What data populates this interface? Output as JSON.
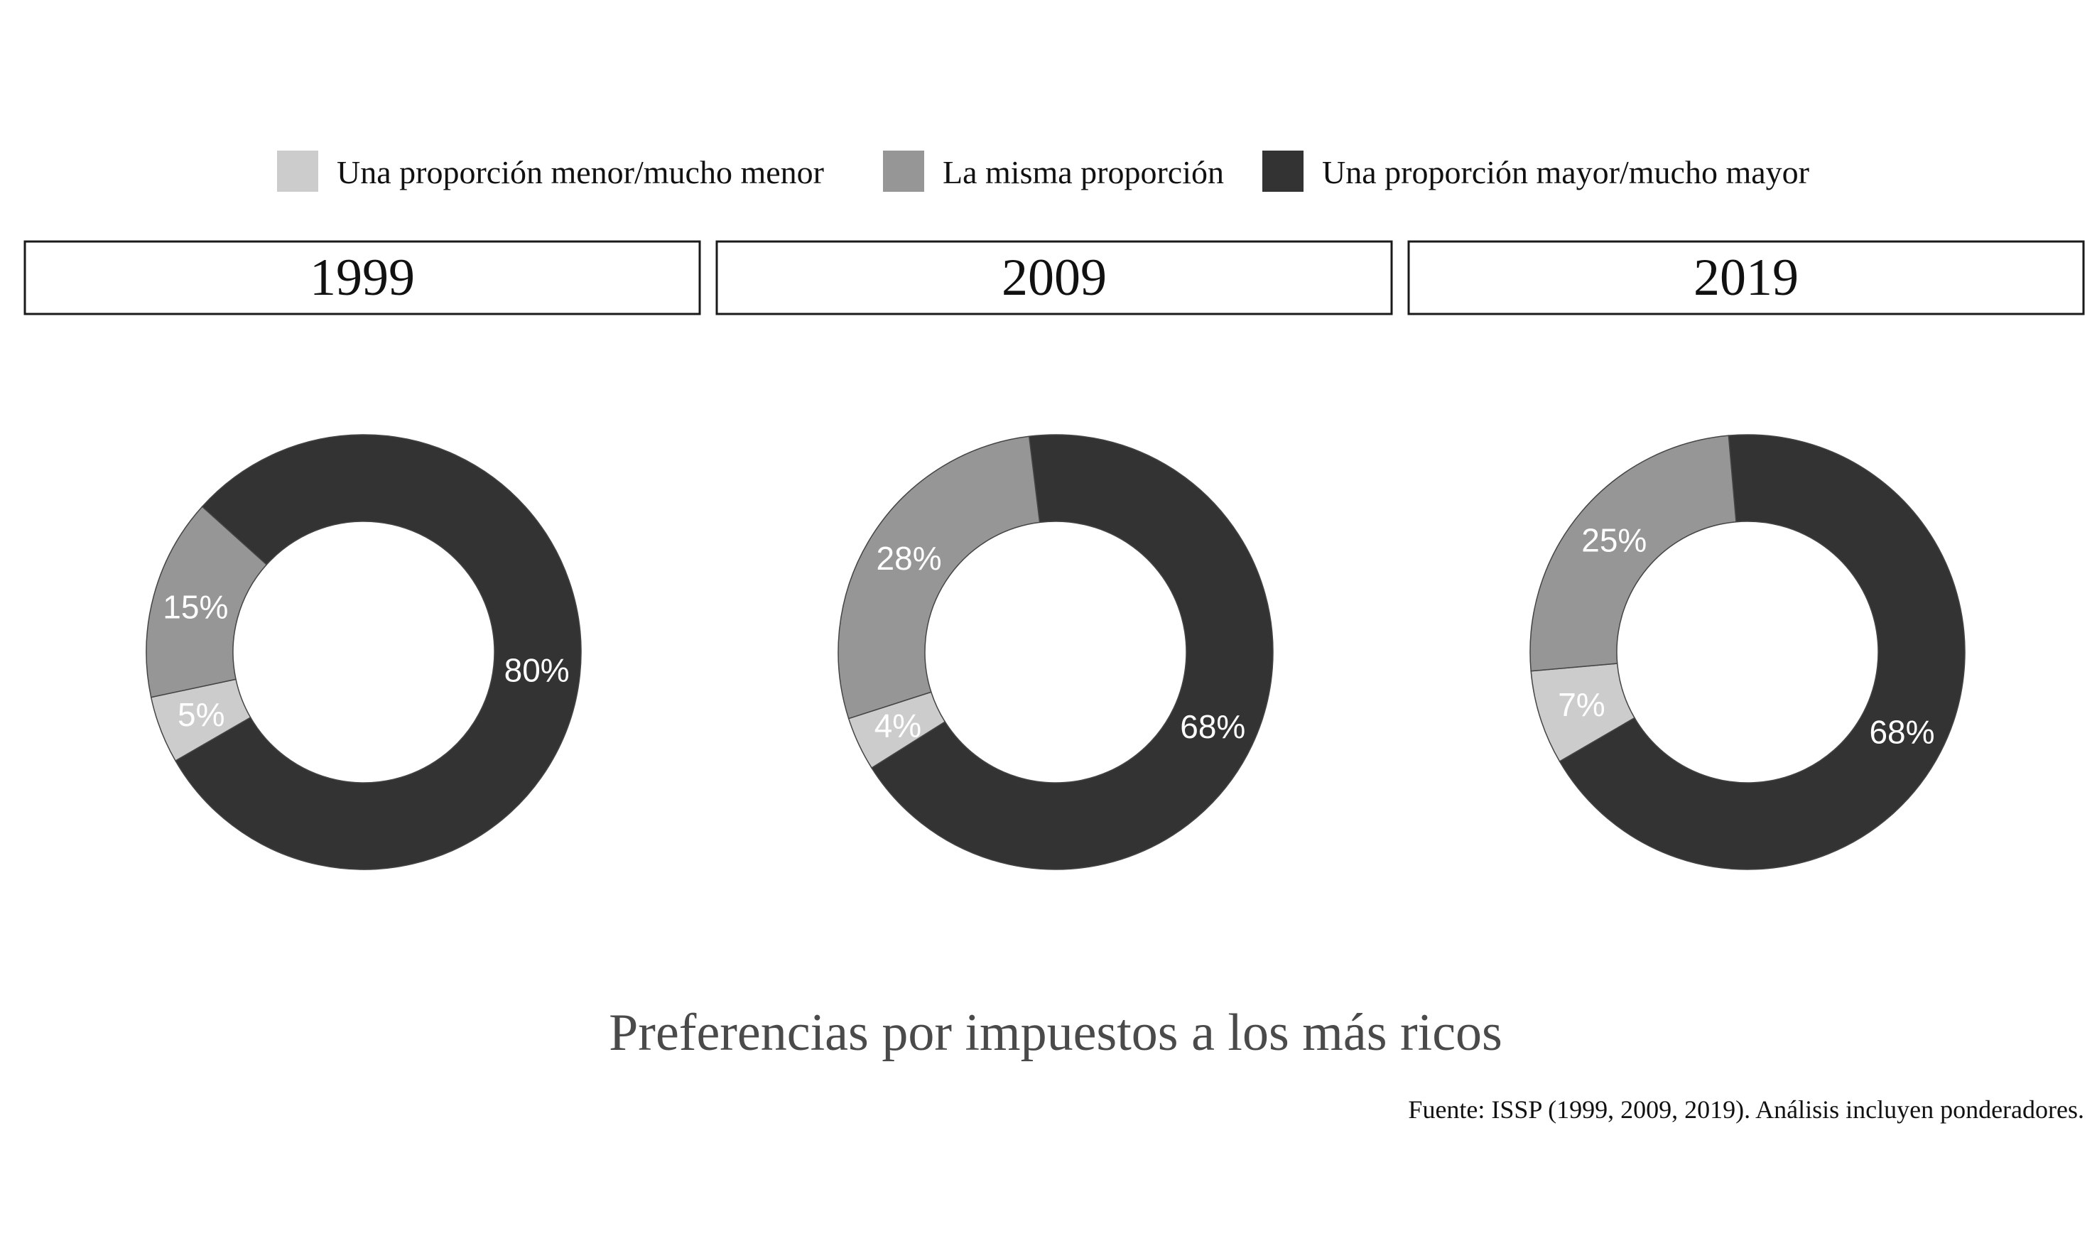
{
  "chart_data": {
    "type": "pie",
    "title": "Preferencias por impuestos a los más ricos",
    "caption": "Fuente: ISSP (1999, 2009, 2019). Análisis incluyen ponderadores.",
    "legend_position": "top",
    "categories": [
      "Una proporción menor/mucho menor",
      "La misma proporción",
      "Una proporción mayor/mucho mayor"
    ],
    "colors": [
      "#cccccc",
      "#969696",
      "#333333"
    ],
    "panels": [
      {
        "label": "1999",
        "values": [
          5,
          15,
          80
        ],
        "labels": [
          "5%",
          "15%",
          "80%"
        ]
      },
      {
        "label": "2009",
        "values": [
          4,
          28,
          68
        ],
        "labels": [
          "4%",
          "28%",
          "68%"
        ]
      },
      {
        "label": "2019",
        "values": [
          7,
          25,
          68
        ],
        "labels": [
          "7%",
          "25%",
          "68%"
        ]
      }
    ]
  }
}
